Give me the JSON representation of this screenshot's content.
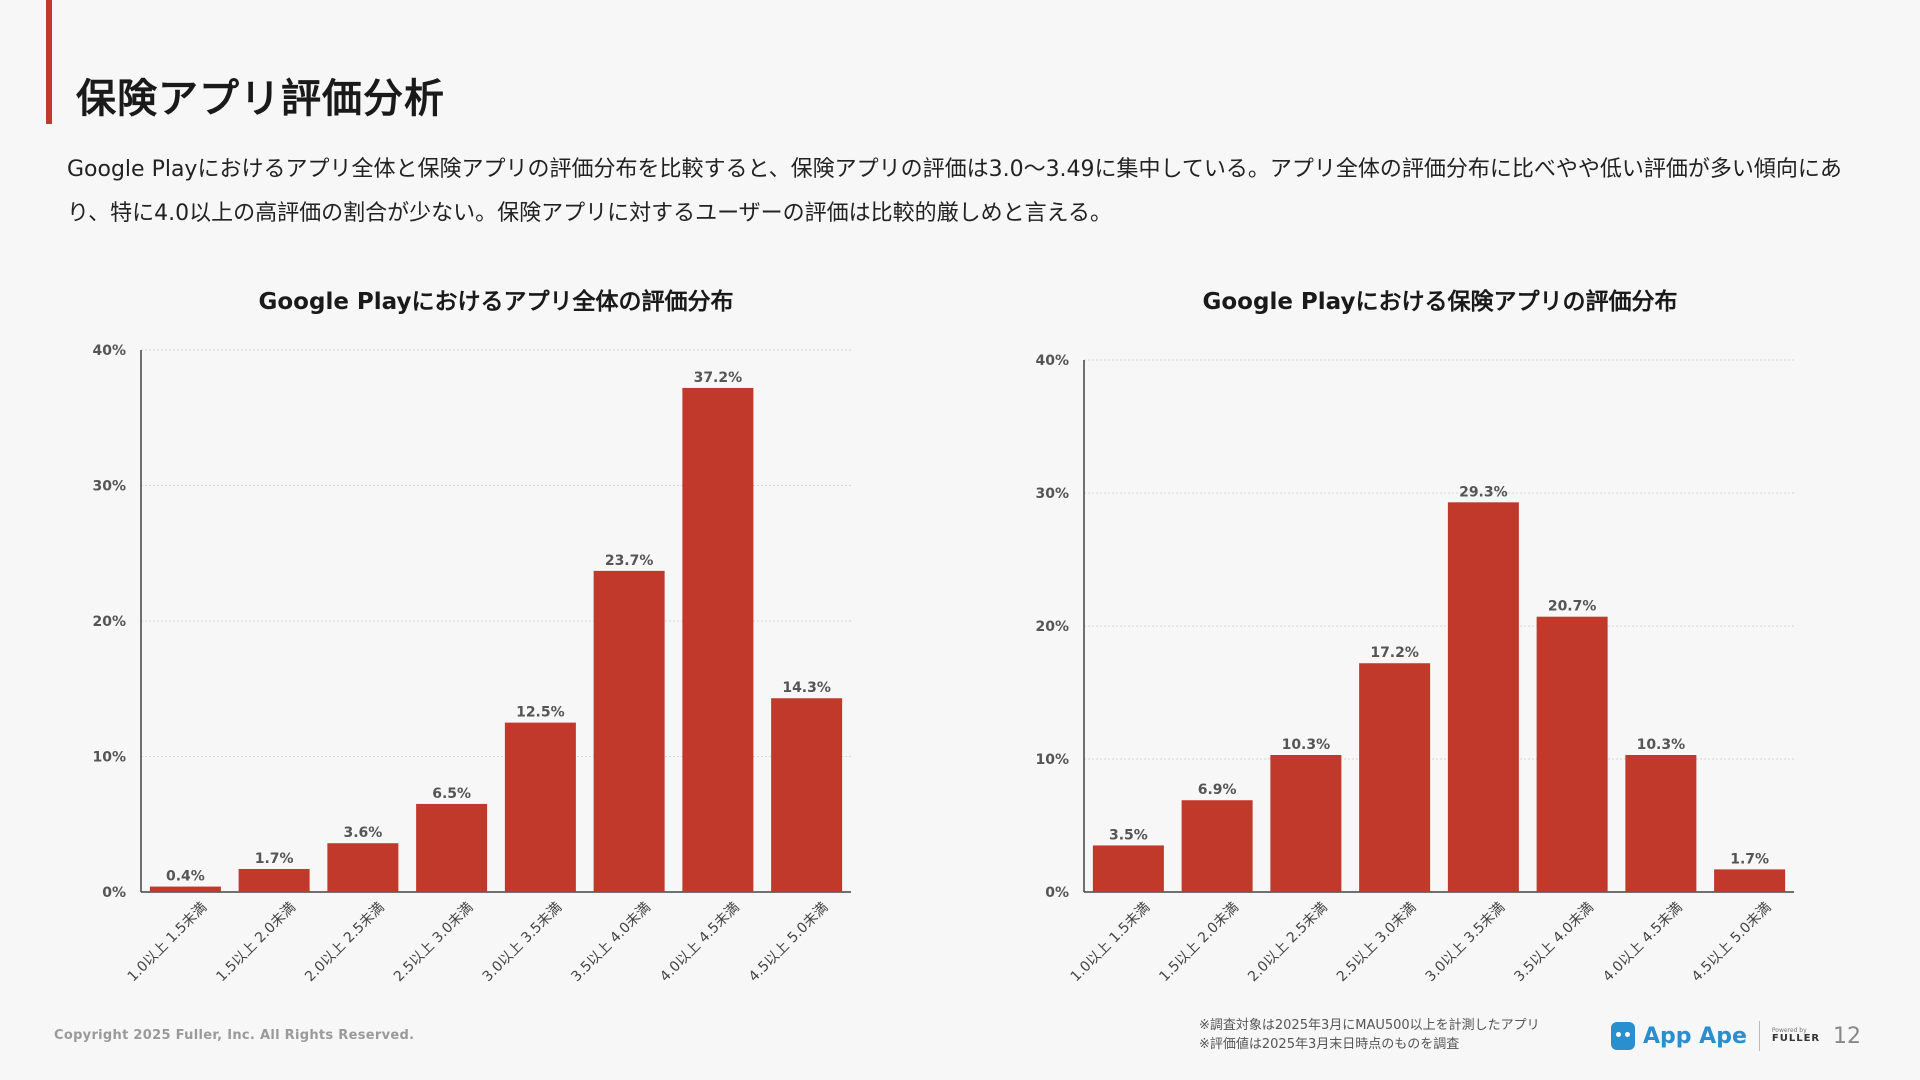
{
  "page": {
    "title": "保険アプリ評価分析",
    "summary": "Google Playにおけるアプリ全体と保険アプリの評価分布を比較すると、保険アプリの評価は3.0〜3.49に集中している。アプリ全体の評価分布に比べやや低い評価が多い傾向にあり、特に4.0以上の高評価の割合が少ない。保険アプリに対するユーザーの評価は比較的厳しめと言える。",
    "copyright": "Copyright 2025 Fuller, Inc. All Rights Reserved.",
    "notes": [
      "※調査対象は2025年3月にMAU500以上を計測したアプリ",
      "※評価値は2025年3月末日時点のものを調査"
    ],
    "brand": {
      "name": "App Ape",
      "powered_by": "Powered by",
      "partner": "FULLER"
    },
    "page_number": "12",
    "accent_color": "#c0392b"
  },
  "chart_data": [
    {
      "type": "bar",
      "title": "Google Playにおけるアプリ全体の評価分布",
      "categories": [
        "1.0以上 1.5未満",
        "1.5以上 2.0未満",
        "2.0以上 2.5未満",
        "2.5以上 3.0未満",
        "3.0以上 3.5未満",
        "3.5以上 4.0未満",
        "4.0以上 4.5未満",
        "4.5以上 5.0未満"
      ],
      "values": [
        0.4,
        1.7,
        3.6,
        6.5,
        12.5,
        23.7,
        37.2,
        14.3
      ],
      "value_labels": [
        "0.4%",
        "1.7%",
        "3.6%",
        "6.5%",
        "12.5%",
        "23.7%",
        "37.2%",
        "14.3%"
      ],
      "yticks": [
        0,
        10,
        20,
        30,
        40
      ],
      "ytick_labels": [
        "0%",
        "10%",
        "20%",
        "30%",
        "40%"
      ],
      "ylim": [
        0,
        40
      ],
      "xlabel": "",
      "ylabel": "",
      "grid": true,
      "bar_color": "#c0392b"
    },
    {
      "type": "bar",
      "title": "Google Playにおける保険アプリの評価分布",
      "categories": [
        "1.0以上 1.5未満",
        "1.5以上 2.0未満",
        "2.0以上 2.5未満",
        "2.5以上 3.0未満",
        "3.0以上 3.5未満",
        "3.5以上 4.0未満",
        "4.0以上 4.5未満",
        "4.5以上 5.0未満"
      ],
      "values": [
        3.5,
        6.9,
        10.3,
        17.2,
        29.3,
        20.7,
        10.3,
        1.7
      ],
      "value_labels": [
        "3.5%",
        "6.9%",
        "10.3%",
        "17.2%",
        "29.3%",
        "20.7%",
        "10.3%",
        "1.7%"
      ],
      "yticks": [
        0,
        10,
        20,
        30,
        40
      ],
      "ytick_labels": [
        "0%",
        "10%",
        "20%",
        "30%",
        "40%"
      ],
      "ylim": [
        0,
        40
      ],
      "xlabel": "",
      "ylabel": "",
      "grid": true,
      "bar_color": "#c0392b"
    }
  ]
}
